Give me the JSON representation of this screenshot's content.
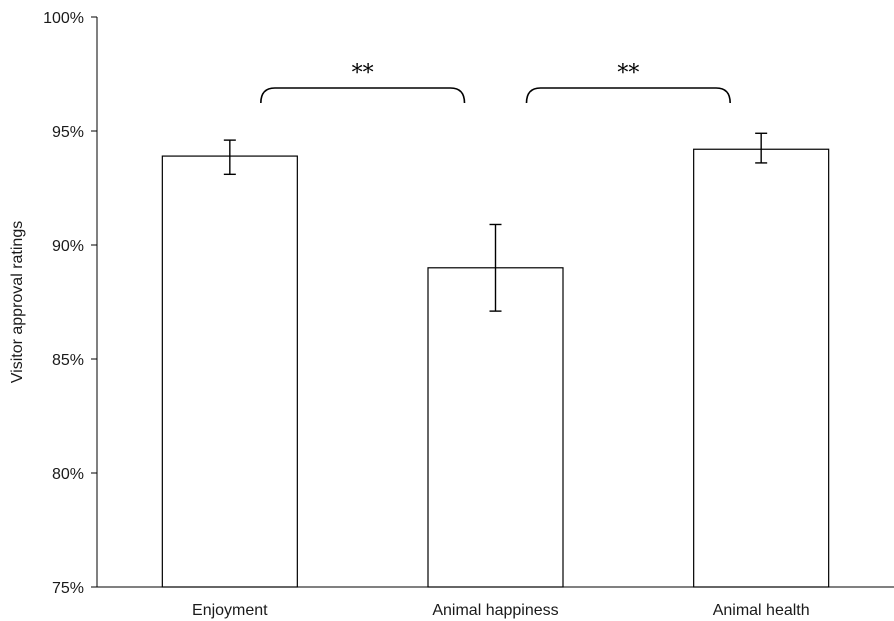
{
  "chart_data": {
    "type": "bar",
    "title": "",
    "xlabel": "",
    "ylabel": "Visitor approval ratings",
    "ylim": [
      75,
      100
    ],
    "y_ticks": [
      75,
      80,
      85,
      90,
      95,
      100
    ],
    "y_tick_labels": [
      "75%",
      "80%",
      "85%",
      "90%",
      "95%",
      "100%"
    ],
    "categories": [
      "Enjoyment",
      "Animal happiness",
      "Animal health"
    ],
    "values": [
      93.9,
      89.0,
      94.2
    ],
    "error_low": [
      93.1,
      87.1,
      93.6
    ],
    "error_high": [
      94.6,
      90.9,
      94.9
    ],
    "significance": [
      {
        "from": 0,
        "to": 1,
        "label": "**"
      },
      {
        "from": 1,
        "to": 2,
        "label": "**"
      }
    ],
    "grid": false,
    "legend": "none"
  }
}
